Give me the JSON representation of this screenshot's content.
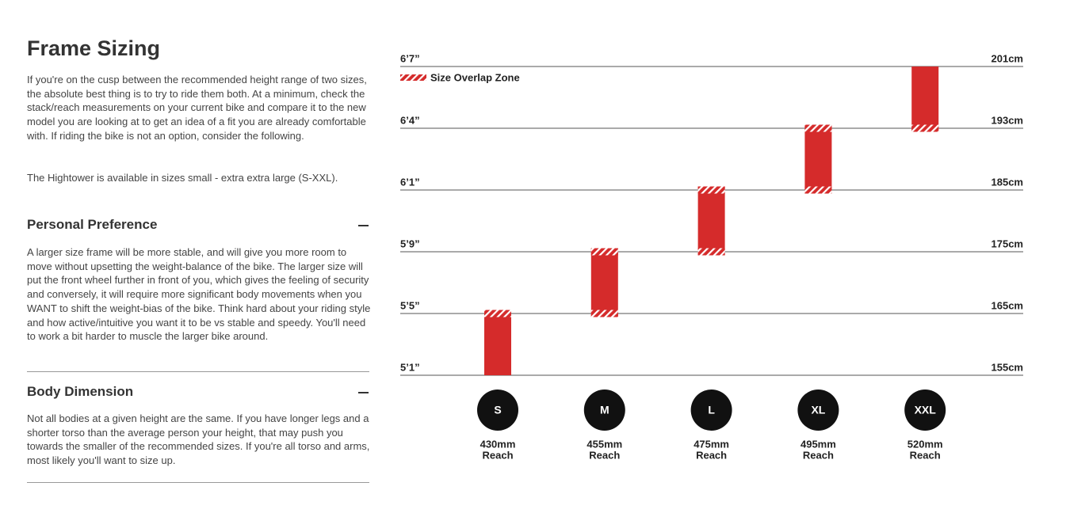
{
  "page": {
    "title": "Frame Sizing",
    "intro": [
      "If you're on the cusp between the recommended height range of two sizes, the absolute best thing is to try to ride them both. At a minimum, check the stack/reach measurements on your current bike and compare it to the new model you are looking at to get an idea of a fit you are already comfortable with. If riding the bike is not an option, consider the following.",
      "The Hightower is available in sizes small - extra extra large (S-XXL)."
    ],
    "sections": [
      {
        "heading": "Personal Preference",
        "body": "A larger size frame will be more stable, and will give you more room to move without upsetting the weight-balance of the bike. The larger size will put the front wheel further in front of you, which gives the feeling of security and conversely, it will require more significant body movements when you WANT to shift the weight-bias of the bike. Think hard about your riding style and how active/intuitive you want it to be vs stable and speedy. You'll need to work a bit harder to muscle the larger bike around."
      },
      {
        "heading": "Body Dimension",
        "body": "Not all bodies at a given height are the same. If you have longer legs and a shorter torso than the average person your height, that may push you towards the smaller of the recommended sizes. If you're all torso and arms, most likely you'll want to size up."
      }
    ]
  },
  "chart_data": {
    "type": "range-bar",
    "legend": "Size Overlap Zone",
    "color": "#d52b2b",
    "levels": [
      {
        "imperial": "6’7”",
        "metric": {
          "value": 201,
          "label": "201cm"
        }
      },
      {
        "imperial": "6’4”",
        "metric": {
          "value": 193,
          "label": "193cm"
        }
      },
      {
        "imperial": "6’1”",
        "metric": {
          "value": 185,
          "label": "185cm"
        }
      },
      {
        "imperial": "5’9”",
        "metric": {
          "value": 175,
          "label": "175cm"
        }
      },
      {
        "imperial": "5’5”",
        "metric": {
          "value": 165,
          "label": "165cm"
        }
      },
      {
        "imperial": "5’1”",
        "metric": {
          "value": 155,
          "label": "155cm"
        }
      }
    ],
    "reach_label": "Reach",
    "sizes": [
      {
        "name": "S",
        "range": [
          155,
          165
        ],
        "reach": "430mm"
      },
      {
        "name": "M",
        "range": [
          165,
          175
        ],
        "reach": "455mm"
      },
      {
        "name": "L",
        "range": [
          175,
          185
        ],
        "reach": "475mm"
      },
      {
        "name": "XL",
        "range": [
          185,
          193
        ],
        "reach": "495mm"
      },
      {
        "name": "XXL",
        "range": [
          193,
          201
        ],
        "reach": "520mm"
      }
    ]
  }
}
